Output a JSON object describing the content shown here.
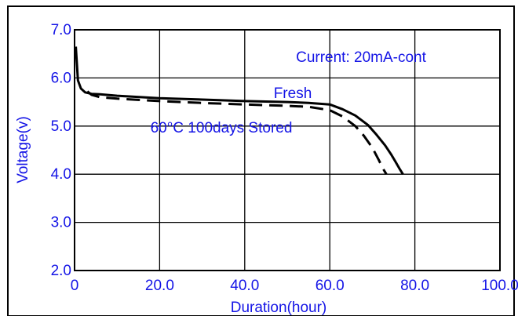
{
  "chart_data": {
    "type": "line",
    "title": "",
    "xlabel": "Duration(hour)",
    "ylabel": "Voltage(v)",
    "xlim": [
      0,
      100
    ],
    "ylim": [
      2.0,
      7.0
    ],
    "x_ticks": [
      "0",
      "20.0",
      "40.0",
      "60.0",
      "80.0",
      "100.0"
    ],
    "y_ticks": [
      "2.0",
      "3.0",
      "4.0",
      "5.0",
      "6.0",
      "7.0"
    ],
    "grid": true,
    "annotation": "Current: 20mA-cont",
    "series": [
      {
        "name": "Fresh",
        "style": "solid",
        "x": [
          0.3,
          0.8,
          1.5,
          2.5,
          4,
          6,
          10,
          20,
          30,
          40,
          50,
          55,
          60,
          63,
          66,
          69,
          71,
          73,
          74.5,
          75.5,
          76.5,
          77.2
        ],
        "y": [
          6.65,
          5.95,
          5.78,
          5.7,
          5.67,
          5.66,
          5.63,
          5.58,
          5.55,
          5.52,
          5.5,
          5.48,
          5.45,
          5.35,
          5.22,
          5.02,
          4.82,
          4.6,
          4.4,
          4.25,
          4.1,
          4.0
        ]
      },
      {
        "name": "60°C 100days Stored",
        "style": "dashed",
        "x": [
          3,
          4,
          6,
          10,
          20,
          30,
          40,
          50,
          55,
          60,
          63,
          66,
          68,
          70,
          71.5,
          72.5,
          73.3
        ],
        "y": [
          5.72,
          5.65,
          5.6,
          5.57,
          5.52,
          5.48,
          5.45,
          5.42,
          5.4,
          5.33,
          5.2,
          5.0,
          4.8,
          4.55,
          4.3,
          4.12,
          4.0
        ]
      }
    ],
    "series_labels": [
      "Fresh",
      "60°C 100days Stored"
    ],
    "colors": {
      "text": "#1414e6",
      "curve": "#000000",
      "grid": "#000000"
    }
  }
}
